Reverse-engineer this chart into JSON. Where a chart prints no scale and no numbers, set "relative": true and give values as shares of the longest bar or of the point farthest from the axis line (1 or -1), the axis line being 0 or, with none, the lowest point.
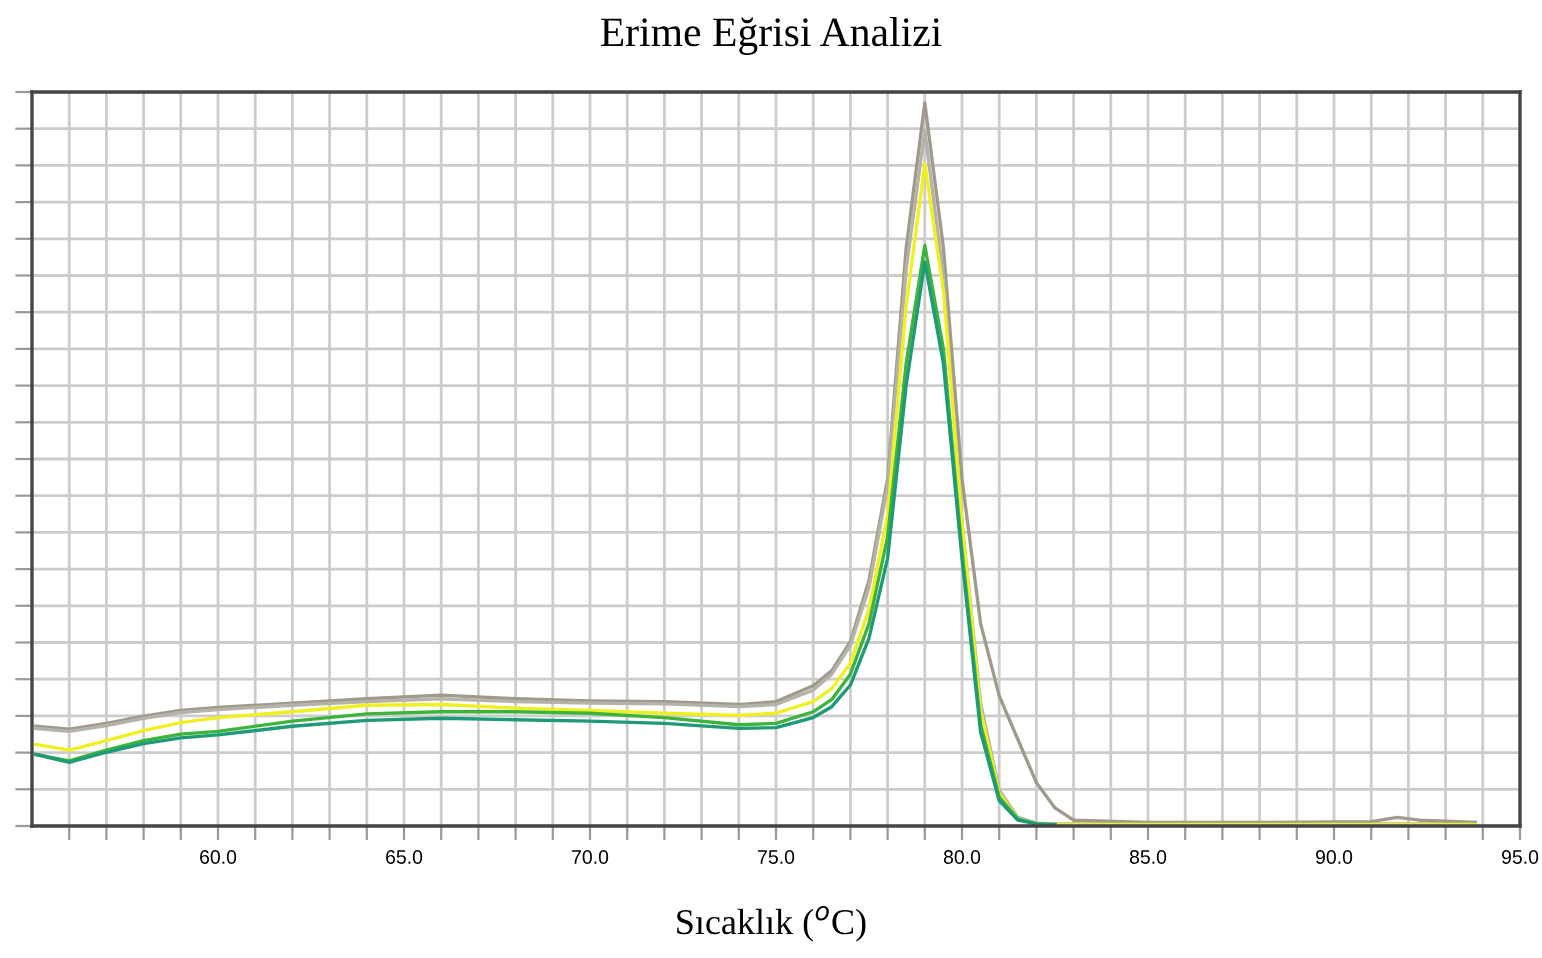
{
  "chart_data": {
    "type": "line",
    "title": "Erime Eğrisi Analizi",
    "xlabel": "Sıcaklık ($^{o}$C)",
    "relative": true,
    "grid": true,
    "legend": false,
    "marker": "none",
    "line_style": "solid",
    "tick_labels": "x",
    "xlim": [
      55,
      95
    ],
    "xticks": [
      {
        "value": 56,
        "label": null
      },
      {
        "value": 57,
        "label": null
      },
      {
        "value": 58,
        "label": null
      },
      {
        "value": 59,
        "label": null
      },
      {
        "value": 60,
        "label": "60.0"
      },
      {
        "value": 61,
        "label": null
      },
      {
        "value": 62,
        "label": null
      },
      {
        "value": 63,
        "label": null
      },
      {
        "value": 64,
        "label": null
      },
      {
        "value": 65,
        "label": "65.0"
      },
      {
        "value": 66,
        "label": null
      },
      {
        "value": 67,
        "label": null
      },
      {
        "value": 68,
        "label": null
      },
      {
        "value": 69,
        "label": null
      },
      {
        "value": 70,
        "label": "70.0"
      },
      {
        "value": 71,
        "label": null
      },
      {
        "value": 72,
        "label": null
      },
      {
        "value": 73,
        "label": null
      },
      {
        "value": 74,
        "label": null
      },
      {
        "value": 75,
        "label": "75.0"
      },
      {
        "value": 76,
        "label": null
      },
      {
        "value": 77,
        "label": null
      },
      {
        "value": 78,
        "label": null
      },
      {
        "value": 79,
        "label": null
      },
      {
        "value": 80,
        "label": "80.0"
      },
      {
        "value": 81,
        "label": null
      },
      {
        "value": 82,
        "label": null
      },
      {
        "value": 83,
        "label": null
      },
      {
        "value": 84,
        "label": null
      },
      {
        "value": 85,
        "label": "85.0"
      },
      {
        "value": 86,
        "label": null
      },
      {
        "value": 87,
        "label": null
      },
      {
        "value": 88,
        "label": null
      },
      {
        "value": 89,
        "label": null
      },
      {
        "value": 90,
        "label": "90.0"
      },
      {
        "value": 91,
        "label": null
      },
      {
        "value": 92,
        "label": null
      },
      {
        "value": 93,
        "label": null
      },
      {
        "value": 94,
        "label": null
      },
      {
        "value": 95,
        "label": "95.0"
      }
    ],
    "x": [
      55.1,
      56,
      57,
      58,
      59,
      60,
      62,
      64,
      66,
      68,
      70,
      72,
      74,
      75,
      76,
      76.5,
      77,
      77.5,
      78,
      78.5,
      79,
      79.5,
      80,
      80.5,
      81,
      81.5,
      82,
      82.5,
      83,
      85,
      88,
      91,
      91.7,
      92.3,
      93.8
    ],
    "series": [
      {
        "color": "#a09a8c",
        "values": [
          0.138,
          0.134,
          0.142,
          0.152,
          0.16,
          0.164,
          0.17,
          0.176,
          0.181,
          0.176,
          0.173,
          0.172,
          0.168,
          0.172,
          0.194,
          0.215,
          0.255,
          0.34,
          0.48,
          0.8,
          1.0,
          0.8,
          0.48,
          0.28,
          0.18,
          0.12,
          0.06,
          0.025,
          0.008,
          0.005,
          0.005,
          0.006,
          0.012,
          0.008,
          0.005
        ]
      },
      {
        "color": "#b4b2aa",
        "values": [
          0.135,
          0.131,
          0.139,
          0.149,
          0.157,
          0.161,
          0.167,
          0.172,
          0.176,
          0.172,
          0.17,
          0.169,
          0.165,
          0.168,
          0.188,
          0.21,
          0.25,
          0.33,
          0.47,
          0.77,
          0.962,
          0.76,
          0.42,
          0.17,
          0.05,
          0.012,
          0.004,
          0.003,
          0.003,
          0.003,
          0.003,
          0.003,
          0.003,
          0.003,
          0.003
        ]
      },
      {
        "color": "#f0f020",
        "values": [
          0.113,
          0.105,
          0.118,
          0.132,
          0.143,
          0.15,
          0.158,
          0.167,
          0.168,
          0.163,
          0.16,
          0.156,
          0.153,
          0.156,
          0.172,
          0.19,
          0.225,
          0.3,
          0.43,
          0.72,
          0.916,
          0.74,
          0.42,
          0.16,
          0.045,
          0.01,
          0.003,
          0.002,
          0.002,
          0.002,
          0.002,
          0.002,
          0.002,
          0.002,
          0.002
        ]
      },
      {
        "color": "#3cb43c",
        "values": [
          0.099,
          0.09,
          0.105,
          0.118,
          0.127,
          0.131,
          0.145,
          0.155,
          0.158,
          0.158,
          0.156,
          0.15,
          0.14,
          0.142,
          0.158,
          0.175,
          0.21,
          0.28,
          0.4,
          0.64,
          0.803,
          0.66,
          0.38,
          0.14,
          0.04,
          0.01,
          0.003,
          0.002,
          null,
          null,
          null,
          null,
          null,
          null,
          null
        ]
      },
      {
        "color": "#1e9a78",
        "values": [
          0.099,
          0.088,
          0.102,
          0.114,
          0.122,
          0.126,
          0.138,
          0.146,
          0.149,
          0.147,
          0.145,
          0.142,
          0.135,
          0.136,
          0.15,
          0.165,
          0.195,
          0.26,
          0.37,
          0.61,
          0.78,
          0.64,
          0.37,
          0.13,
          0.035,
          0.008,
          0.003,
          0.002,
          null,
          null,
          null,
          null,
          null,
          null,
          null
        ]
      }
    ]
  }
}
